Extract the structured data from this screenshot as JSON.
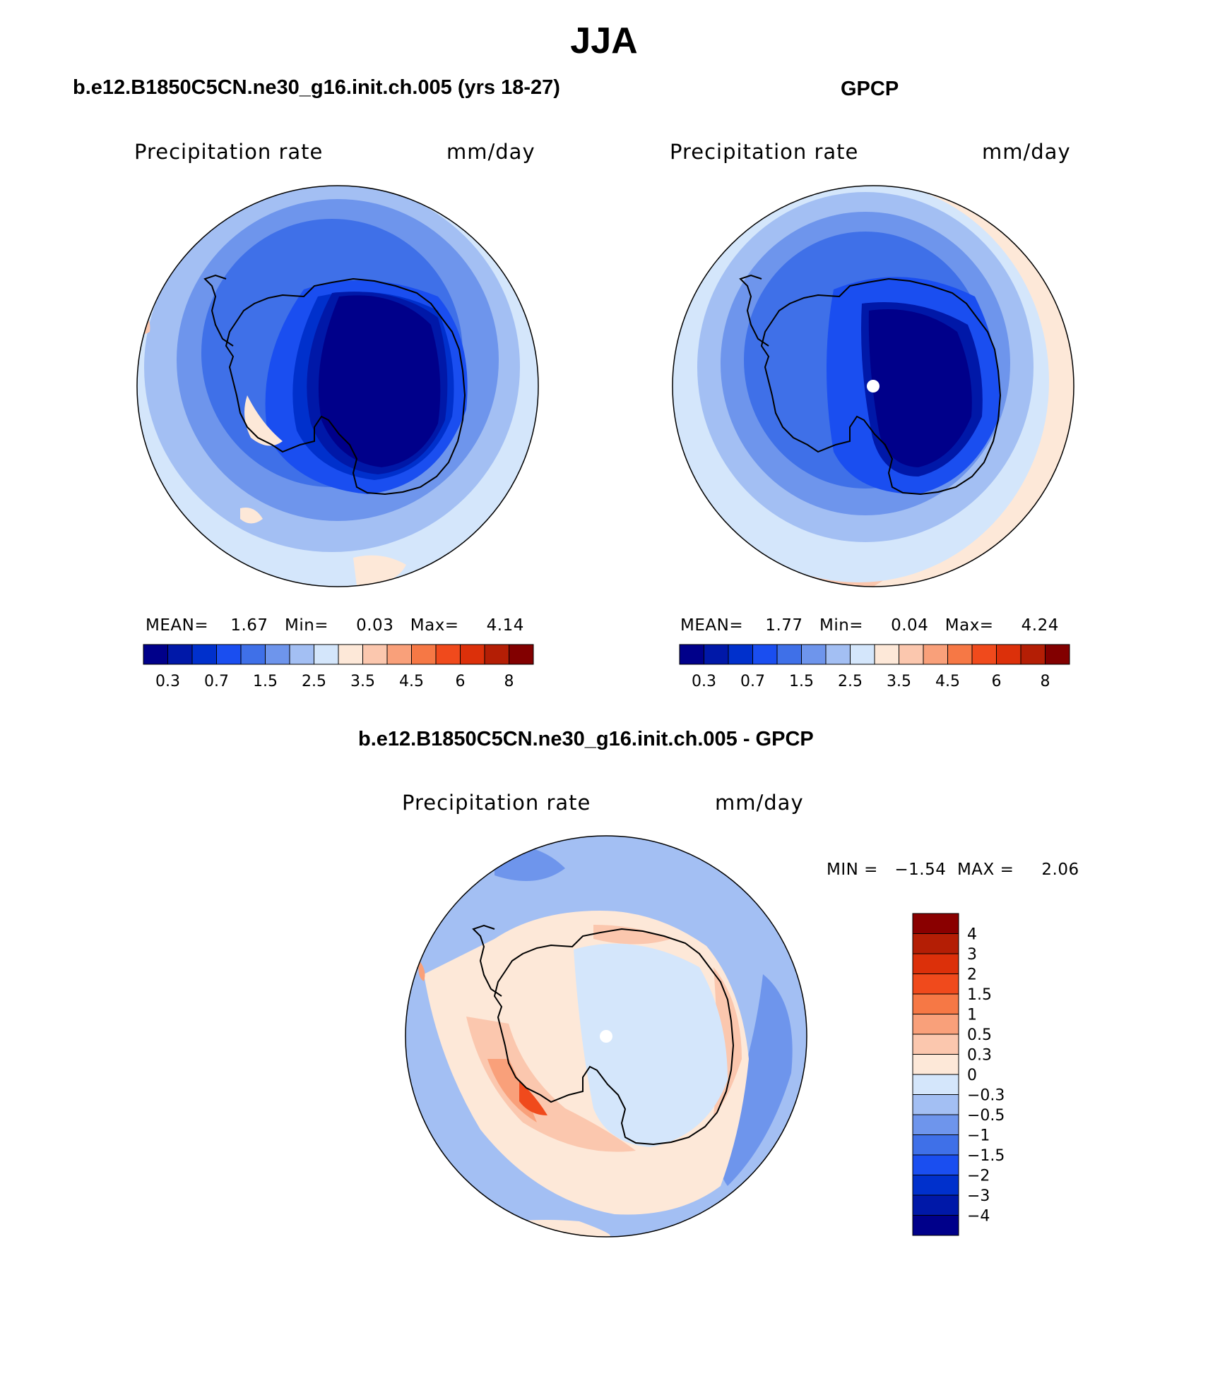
{
  "main_title": "JJA",
  "colors": {
    "abs_scale": [
      "#00008a",
      "#0018a8",
      "#0030cc",
      "#1a4ef0",
      "#3f70e8",
      "#6e95ec",
      "#a3bff3",
      "#d4e6fb",
      "#fde8d8",
      "#fbc7ae",
      "#f9a07a",
      "#f67845",
      "#f04a1c",
      "#dc300a",
      "#b41e05",
      "#820000"
    ],
    "diff_scale": [
      "#8a0000",
      "#b41e05",
      "#dc300a",
      "#f04a1c",
      "#f67845",
      "#f9a07a",
      "#fbc7ae",
      "#fde8d8",
      "#d4e6fb",
      "#a3bff3",
      "#6e95ec",
      "#3f70e8",
      "#1a4ef0",
      "#0030cc",
      "#0018a8",
      "#00008a"
    ]
  },
  "panels": [
    {
      "title": "b.e12.B1850C5CN.ne30_g16.init.ch.005 (yrs 18-27)",
      "variable": "Precipitation rate",
      "units": "mm/day",
      "stats_text": "MEAN=    1.67   Min=     0.03   Max=     4.14",
      "colorbar_labels": [
        "0.3",
        "0.7",
        "1.5",
        "2.5",
        "3.5",
        "4.5",
        "6",
        "8"
      ]
    },
    {
      "title": "GPCP",
      "variable": "Precipitation rate",
      "units": "mm/day",
      "stats_text": "MEAN=    1.77   Min=     0.04   Max=     4.24",
      "colorbar_labels": [
        "0.3",
        "0.7",
        "1.5",
        "2.5",
        "3.5",
        "4.5",
        "6",
        "8"
      ]
    },
    {
      "title": "b.e12.B1850C5CN.ne30_g16.init.ch.005 - GPCP",
      "variable": "Precipitation rate",
      "units": "mm/day",
      "stats_text": "MIN =   −1.54  MAX =     2.06",
      "colorbar_labels": [
        "4",
        "3",
        "2",
        "1.5",
        "1",
        "0.5",
        "0.3",
        "0",
        "−0.3",
        "−0.5",
        "−1",
        "−1.5",
        "−2",
        "−3",
        "−4"
      ]
    }
  ]
}
